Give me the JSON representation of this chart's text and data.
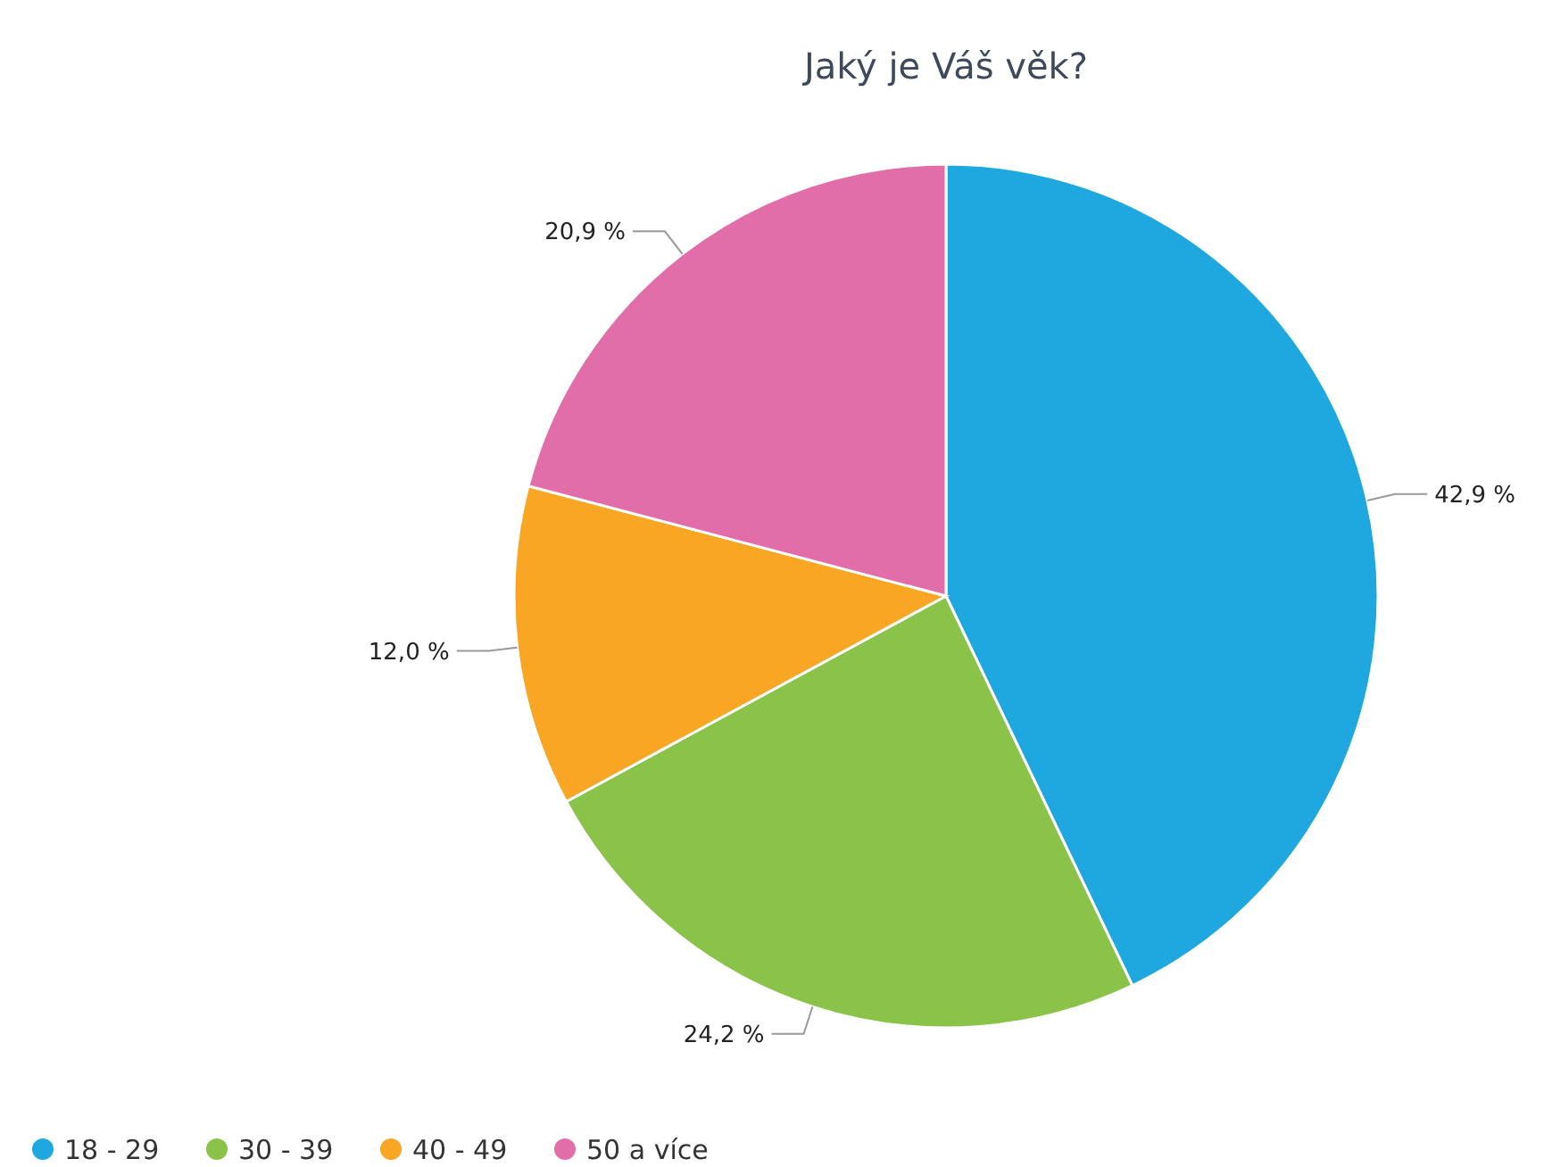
{
  "chart_data": {
    "type": "pie",
    "title": "Jaký je Váš věk?",
    "categories": [
      "18 - 29",
      "30 - 39",
      "40 - 49",
      "50 a více"
    ],
    "values": [
      42.9,
      24.2,
      12.0,
      20.9
    ],
    "colors": [
      "#1fa8df",
      "#8bc34a",
      "#f8a623",
      "#e26ea9"
    ],
    "value_labels": [
      "42,9 %",
      "24,2 %",
      "12,0 %",
      "20,9 %"
    ],
    "legend": "bottom left"
  }
}
